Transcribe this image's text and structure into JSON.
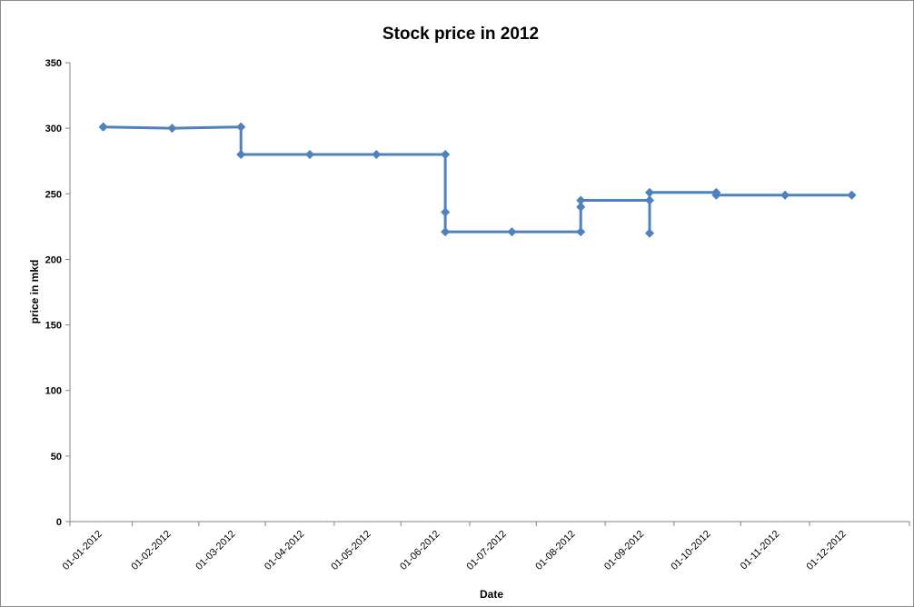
{
  "chart_data": {
    "type": "line",
    "title": "Stock price in 2012",
    "xlabel": "Date",
    "ylabel": "price in mkd",
    "ylim": [
      0,
      350
    ],
    "yticks": [
      "0",
      "50",
      "100",
      "150",
      "200",
      "250",
      "300",
      "350"
    ],
    "xticks": [
      "01-01-2012",
      "01-02-2012",
      "01-03-2012",
      "01-04-2012",
      "01-05-2012",
      "01-06-2012",
      "01-07-2012",
      "01-08-2012",
      "01-09-2012",
      "01-10-2012",
      "01-11-2012",
      "01-12-2012"
    ],
    "xlim": [
      "2011-12-19",
      "2012-12-31"
    ],
    "grid": false,
    "legend": "none",
    "series_color": "#4f81bd",
    "marker": "diamond",
    "series": [
      {
        "points": [
          {
            "x": "2012-01-03",
            "y": 301
          },
          {
            "x": "2012-01-03",
            "y": 301
          },
          {
            "x": "2012-02-03",
            "y": 300
          },
          {
            "x": "2012-03-05",
            "y": 301
          },
          {
            "x": "2012-03-05",
            "y": 280
          },
          {
            "x": "2012-04-05",
            "y": 280
          },
          {
            "x": "2012-05-05",
            "y": 280
          },
          {
            "x": "2012-06-05",
            "y": 280
          },
          {
            "x": "2012-06-05",
            "y": 236
          },
          {
            "x": "2012-06-05",
            "y": 221
          },
          {
            "x": "2012-07-05",
            "y": 221
          },
          {
            "x": "2012-08-05",
            "y": 221
          },
          {
            "x": "2012-08-05",
            "y": 240
          },
          {
            "x": "2012-08-05",
            "y": 245
          },
          {
            "x": "2012-09-05",
            "y": 245
          },
          {
            "x": "2012-09-05",
            "y": 220
          },
          {
            "x": "2012-09-05",
            "y": 251
          },
          {
            "x": "2012-10-05",
            "y": 251
          },
          {
            "x": "2012-10-05",
            "y": 249
          },
          {
            "x": "2012-11-05",
            "y": 249
          },
          {
            "x": "2012-12-05",
            "y": 249
          }
        ]
      }
    ]
  }
}
